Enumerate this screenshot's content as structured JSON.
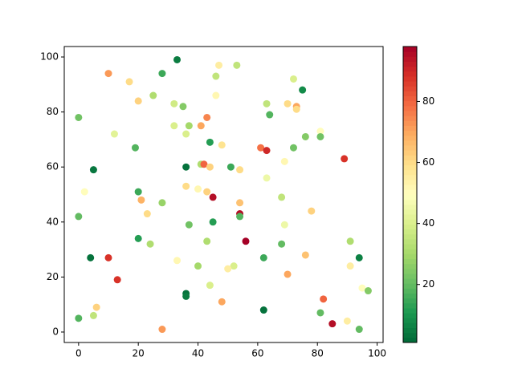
{
  "chart_data": {
    "type": "scatter",
    "x": [
      33,
      47,
      53,
      10,
      28,
      46,
      72,
      17,
      75,
      25,
      46,
      20,
      32,
      63,
      70,
      35,
      73,
      73,
      64,
      0,
      43,
      37,
      32,
      41,
      81,
      12,
      36,
      76,
      81,
      44,
      48,
      19,
      61,
      72,
      63,
      89,
      69,
      41,
      42,
      44,
      36,
      51,
      5,
      54,
      63,
      36,
      40,
      43,
      2,
      20,
      45,
      68,
      21,
      28,
      54,
      78,
      23,
      54,
      54,
      0,
      45,
      37,
      69,
      20,
      56,
      43,
      91,
      24,
      68,
      76,
      4,
      10,
      62,
      94,
      33,
      40,
      52,
      91,
      50,
      70,
      13,
      44,
      95,
      97,
      36,
      36,
      82,
      48,
      6,
      62,
      81,
      5,
      0,
      90,
      85,
      28,
      94
    ],
    "values": [
      99,
      97,
      97,
      94,
      94,
      93,
      92,
      91,
      88,
      86,
      86,
      84,
      83,
      83,
      83,
      82,
      82,
      81,
      79,
      78,
      78,
      75,
      75,
      75,
      73,
      72,
      72,
      71,
      71,
      69,
      68,
      67,
      67,
      67,
      66,
      63,
      62,
      61,
      61,
      60,
      60,
      60,
      59,
      59,
      56,
      53,
      52,
      51,
      51,
      51,
      49,
      49,
      48,
      47,
      47,
      44,
      43,
      43,
      42,
      42,
      40,
      39,
      39,
      34,
      33,
      33,
      33,
      32,
      32,
      28,
      27,
      27,
      27,
      27,
      26,
      24,
      24,
      24,
      23,
      21,
      19,
      17,
      16,
      15,
      14,
      13,
      12,
      11,
      9,
      8,
      7,
      6,
      5,
      4,
      3,
      1,
      1
    ],
    "color_values": [
      5,
      55,
      35,
      72,
      15,
      35,
      40,
      60,
      8,
      32,
      52,
      62,
      38,
      35,
      60,
      25,
      70,
      60,
      18,
      22,
      75,
      30,
      40,
      70,
      50,
      42,
      40,
      25,
      22,
      12,
      58,
      18,
      78,
      22,
      90,
      88,
      52,
      32,
      80,
      62,
      3,
      15,
      4,
      60,
      45,
      60,
      52,
      62,
      50,
      15,
      95,
      35,
      68,
      28,
      65,
      62,
      60,
      95,
      18,
      20,
      12,
      22,
      45,
      12,
      98,
      32,
      32,
      32,
      20,
      65,
      3,
      88,
      15,
      6,
      52,
      30,
      40,
      55,
      55,
      70,
      88,
      40,
      50,
      25,
      3,
      5,
      80,
      70,
      62,
      3,
      20,
      35,
      18,
      55,
      95,
      72,
      20
    ],
    "colormap": "RdYlGn_r",
    "clim": [
      1,
      98
    ],
    "cticks": [
      20,
      40,
      60,
      80
    ],
    "xlim": [
      -4.8,
      102
    ],
    "ylim": [
      -3.8,
      103.8
    ],
    "xticks": [
      0,
      20,
      40,
      60,
      80,
      100
    ],
    "yticks": [
      0,
      20,
      40,
      60,
      80,
      100
    ]
  }
}
